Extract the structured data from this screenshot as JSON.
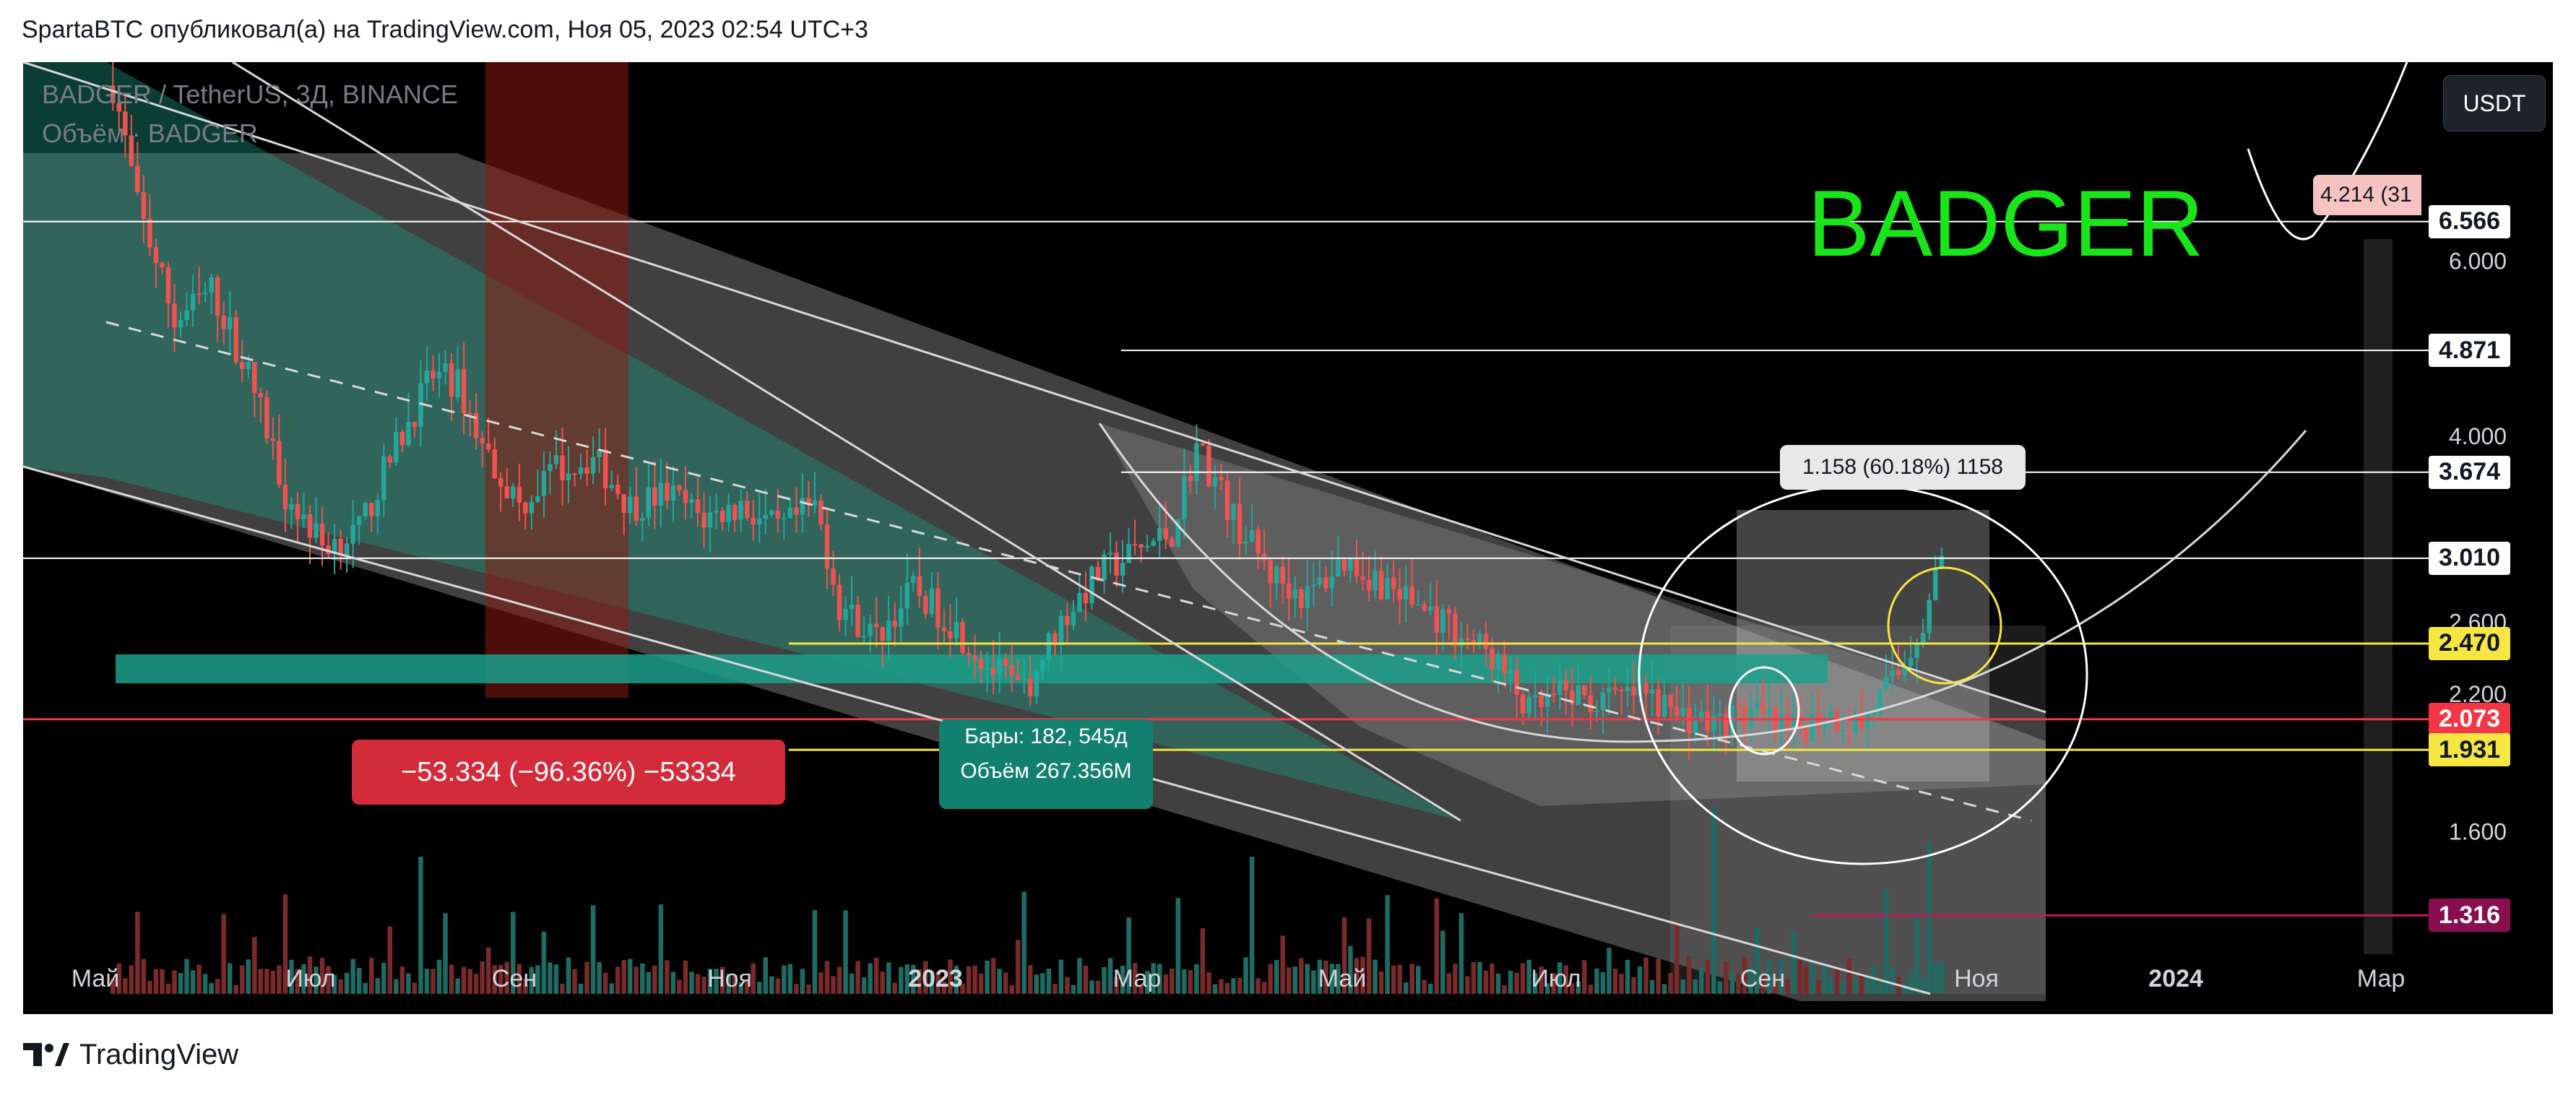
{
  "header": {
    "text": "SpartaBTC опубликовал(а) на TradingView.com, Ноя 05, 2023 02:54 UTC+3"
  },
  "legend": {
    "symbol_line": "BADGER / TetherUS, 3Д, BINANCE",
    "volume_line": "Объём · BADGER"
  },
  "currency_button": {
    "label": "USDT"
  },
  "chart_title": {
    "text": "BADGER",
    "color": "#19e619"
  },
  "footer": {
    "brand": "TradingView",
    "logo": "tradingview-logo-icon"
  },
  "measure_down": {
    "text": "−53.334 (−96.36%) −53334",
    "bars": "Бары: 182, 545д",
    "volume": "Объём 267.356M"
  },
  "measure_up": {
    "text": "1.158 (60.18%) 1158"
  },
  "clipped_label": {
    "text": "4.214 (31"
  },
  "price_labels": [
    {
      "value": "6.566",
      "style": "white"
    },
    {
      "value": "4.871",
      "style": "white"
    },
    {
      "value": "3.674",
      "style": "white"
    },
    {
      "value": "3.010",
      "style": "white"
    },
    {
      "value": "2.470",
      "style": "yellow"
    },
    {
      "value": "2.073",
      "style": "red"
    },
    {
      "value": "1.931",
      "style": "yellow"
    },
    {
      "value": "1.316",
      "style": "magenta"
    }
  ],
  "colors": {
    "up": "#26a69a",
    "down": "#ef5350",
    "vol_up": "#1e6b63",
    "vol_down": "#7a2a2a",
    "yellow": "#f5e642",
    "red_line": "#f23645",
    "magenta": "#880e4f",
    "teal_zone": "#1aa08a"
  },
  "chart_data": {
    "type": "candlestick",
    "title": "BADGER",
    "symbol": "BADGER / TetherUS",
    "timeframe": "3Д",
    "exchange": "BINANCE",
    "y_scale": "log",
    "ylim": [
      1.25,
      9.5
    ],
    "y_ticks": [
      "6.000",
      "4.000",
      "2.600",
      "2.200",
      "1.600"
    ],
    "x_ticks": [
      "Май",
      "Июл",
      "Сен",
      "Ноя",
      "2023",
      "Мар",
      "Май",
      "Июл",
      "Сен",
      "Ноя",
      "2024",
      "Мар"
    ],
    "x_tick_bold": [
      "2023",
      "2024"
    ],
    "horizontal_levels": [
      6.566,
      4.871,
      3.674,
      3.01,
      2.47,
      2.073,
      1.931,
      1.316
    ],
    "measure_down": {
      "change": -53.334,
      "percent": -96.36,
      "ticks": -53334,
      "bars": 182,
      "days": 545,
      "volume": "267.356M"
    },
    "measure_up": {
      "change": 1.158,
      "percent": 60.18,
      "ticks": 1158
    },
    "price_path": [
      [
        0,
        9.0
      ],
      [
        4,
        6.8
      ],
      [
        10,
        5.2
      ],
      [
        16,
        5.6
      ],
      [
        22,
        4.6
      ],
      [
        28,
        3.5
      ],
      [
        34,
        3.1
      ],
      [
        40,
        3.2
      ],
      [
        46,
        3.9
      ],
      [
        52,
        4.6
      ],
      [
        56,
        4.5
      ],
      [
        60,
        3.9
      ],
      [
        66,
        3.4
      ],
      [
        72,
        3.7
      ],
      [
        78,
        3.8
      ],
      [
        84,
        3.4
      ],
      [
        90,
        3.5
      ],
      [
        96,
        3.3
      ],
      [
        102,
        3.4
      ],
      [
        108,
        3.2
      ],
      [
        114,
        3.4
      ],
      [
        118,
        2.7
      ],
      [
        124,
        2.5
      ],
      [
        130,
        2.8
      ],
      [
        136,
        2.6
      ],
      [
        142,
        2.35
      ],
      [
        148,
        2.2
      ],
      [
        154,
        2.6
      ],
      [
        160,
        2.9
      ],
      [
        166,
        3.05
      ],
      [
        172,
        3.2
      ],
      [
        176,
        3.9
      ],
      [
        182,
        3.3
      ],
      [
        188,
        2.9
      ],
      [
        194,
        2.75
      ],
      [
        200,
        3.0
      ],
      [
        206,
        2.85
      ],
      [
        212,
        2.7
      ],
      [
        218,
        2.55
      ],
      [
        224,
        2.4
      ],
      [
        230,
        2.1
      ],
      [
        236,
        2.2
      ],
      [
        242,
        2.15
      ],
      [
        248,
        2.2
      ],
      [
        254,
        2.1
      ],
      [
        260,
        2.05
      ],
      [
        266,
        2.1
      ],
      [
        272,
        2.0
      ],
      [
        278,
        2.1
      ],
      [
        284,
        2.05
      ],
      [
        290,
        2.3
      ],
      [
        294,
        2.6
      ],
      [
        297,
        3.0
      ]
    ]
  }
}
